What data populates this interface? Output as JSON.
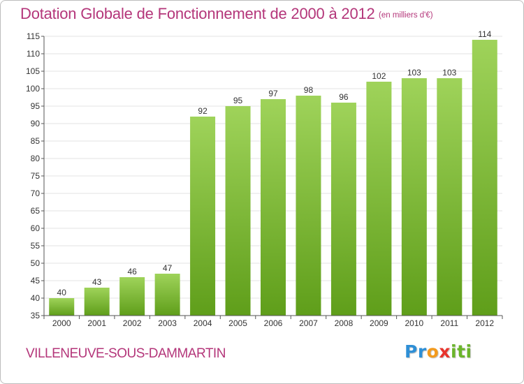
{
  "header": {
    "title": "Dotation Globale de Fonctionnement de 2000 à 2012",
    "subtitle": "(en milliers d'€)"
  },
  "footer": {
    "city": "VILLENEUVE-SOUS-DAMMARTIN",
    "logo_letters": [
      "P",
      "r",
      "o",
      "x",
      "i",
      "t",
      "i"
    ],
    "logo_colors": [
      "#2e8fd6",
      "#2e8fd6",
      "#f39a1c",
      "#e8342d",
      "#6bb52b",
      "#6bb52b",
      "#6bb52b"
    ]
  },
  "colors": {
    "title": "#b4367a",
    "bar_top": "#9fd35a",
    "bar_bottom": "#5f9e1a",
    "grid": "#e3e3e3",
    "axis": "#555555"
  },
  "chart_data": {
    "type": "bar",
    "title": "Dotation Globale de Fonctionnement de 2000 à 2012",
    "subtitle": "(en milliers d'€)",
    "xlabel": "",
    "ylabel": "",
    "categories": [
      "2000",
      "2001",
      "2002",
      "2003",
      "2004",
      "2005",
      "2006",
      "2007",
      "2008",
      "2009",
      "2010",
      "2011",
      "2012"
    ],
    "values": [
      40,
      43,
      46,
      47,
      92,
      95,
      97,
      98,
      96,
      102,
      103,
      103,
      114
    ],
    "ylim": [
      35,
      115
    ],
    "yticks": [
      35,
      40,
      45,
      50,
      55,
      60,
      65,
      70,
      75,
      80,
      85,
      90,
      95,
      100,
      105,
      110,
      115
    ],
    "grid": true,
    "data_labels": true
  }
}
